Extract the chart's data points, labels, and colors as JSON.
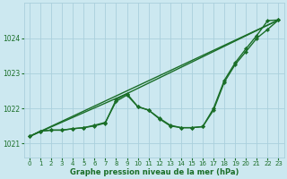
{
  "title": "Graphe pression niveau de la mer (hPa)",
  "background_color": "#cce8f0",
  "grid_color": "#aacfdc",
  "line_color": "#1a6e28",
  "xlim": [
    -0.5,
    23.5
  ],
  "ylim": [
    1020.6,
    1025.0
  ],
  "yticks": [
    1021,
    1022,
    1023,
    1024
  ],
  "xticks": [
    0,
    1,
    2,
    3,
    4,
    5,
    6,
    7,
    8,
    9,
    10,
    11,
    12,
    13,
    14,
    15,
    16,
    17,
    18,
    19,
    20,
    21,
    22,
    23
  ],
  "series": [
    {
      "x": [
        0,
        1,
        2,
        3,
        4,
        5,
        6,
        7,
        8,
        9,
        10,
        11,
        12,
        13,
        14,
        15,
        16,
        17,
        18,
        19,
        20,
        21,
        22,
        23
      ],
      "y": [
        1021.2,
        1021.35,
        1021.38,
        1021.38,
        1021.42,
        1021.45,
        1021.5,
        1021.58,
        1022.25,
        1022.42,
        1022.05,
        1021.95,
        1021.7,
        1021.5,
        1021.45,
        1021.45,
        1021.48,
        1022.0,
        1022.8,
        1023.3,
        1023.7,
        1024.08,
        1024.5,
        1024.52
      ],
      "marker": true,
      "lw": 1.0
    },
    {
      "x": [
        0,
        1,
        2,
        3,
        4,
        5,
        6,
        7,
        8,
        9,
        10,
        11,
        12,
        13,
        14,
        15,
        16,
        17,
        18,
        19,
        20,
        21,
        22,
        23
      ],
      "y": [
        1021.2,
        1021.35,
        1021.38,
        1021.38,
        1021.42,
        1021.45,
        1021.52,
        1021.6,
        1022.2,
        1022.38,
        1022.05,
        1021.95,
        1021.72,
        1021.52,
        1021.45,
        1021.45,
        1021.48,
        1021.95,
        1022.75,
        1023.25,
        1023.62,
        1024.0,
        1024.25,
        1024.52
      ],
      "marker": true,
      "lw": 1.0
    },
    {
      "x": [
        0,
        23
      ],
      "y": [
        1021.2,
        1024.52
      ],
      "marker": false,
      "lw": 1.0
    },
    {
      "x": [
        0,
        9,
        23
      ],
      "y": [
        1021.2,
        1022.42,
        1024.52
      ],
      "marker": false,
      "lw": 1.0
    }
  ],
  "marker_symbol": "D",
  "marker_size": 2.2
}
